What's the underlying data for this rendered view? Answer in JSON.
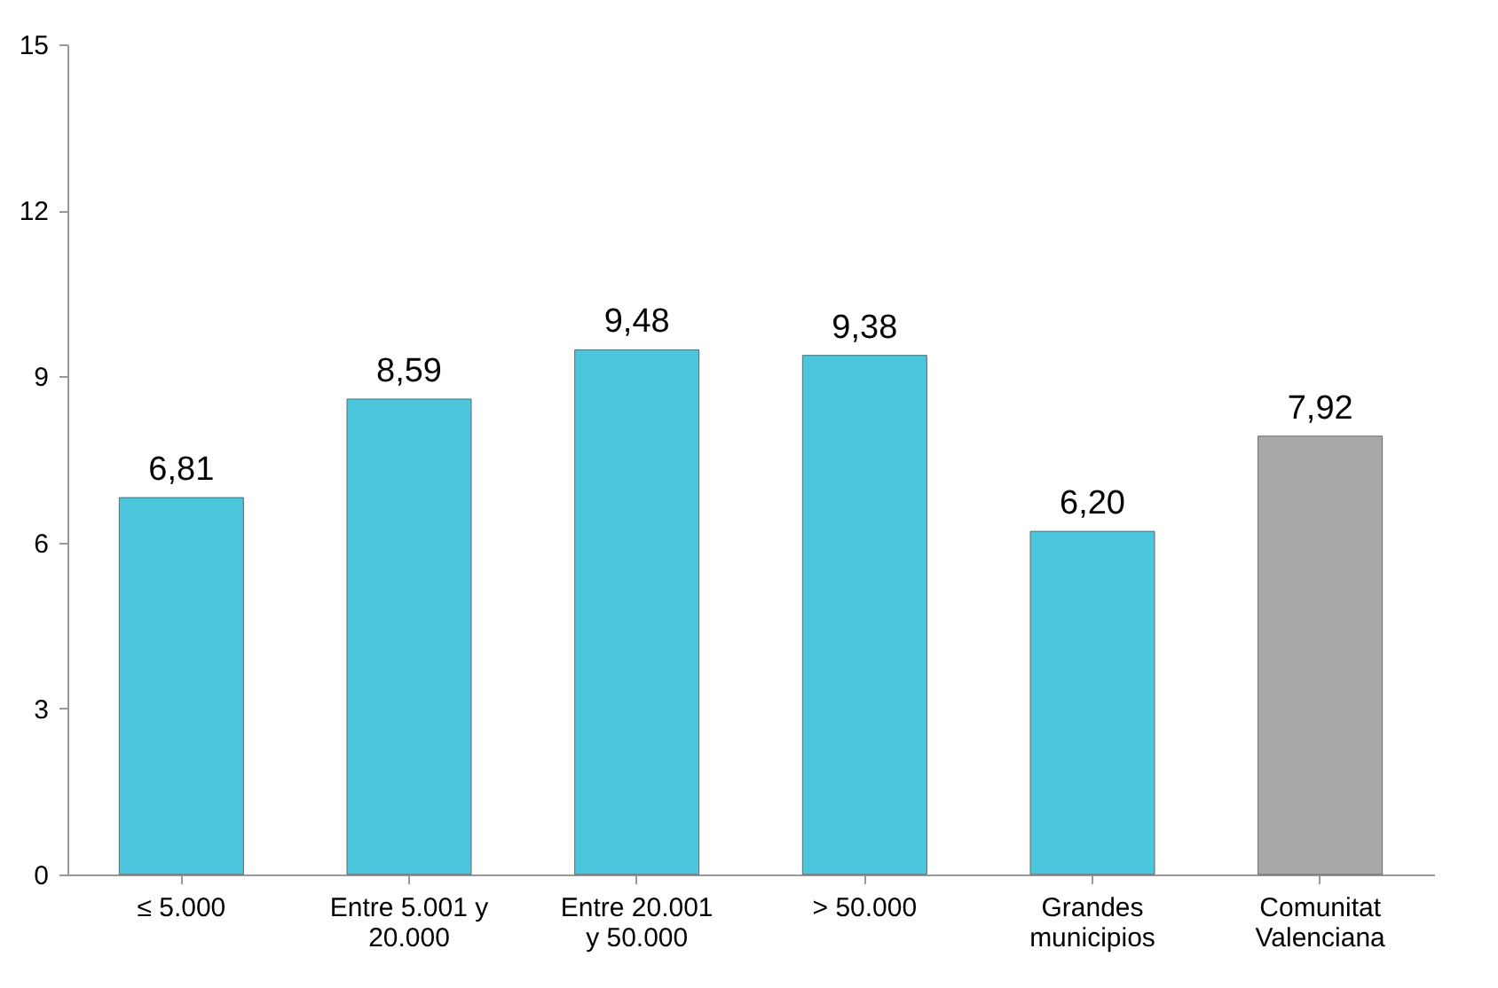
{
  "chart_data": {
    "type": "bar",
    "categories": [
      "≤ 5.000",
      "Entre 5.001 y 20.000",
      "Entre 20.001 y 50.000",
      "> 50.000",
      "Grandes municipios",
      "Comunitat Valenciana"
    ],
    "values": [
      6.81,
      8.59,
      9.48,
      9.38,
      6.2,
      7.92
    ],
    "value_labels": [
      "6,81",
      "8,59",
      "9,48",
      "9,38",
      "6,20",
      "7,92"
    ],
    "colors": [
      "#4bc6dd",
      "#4bc6dd",
      "#4bc6dd",
      "#4bc6dd",
      "#4bc6dd",
      "#a9a9a9"
    ],
    "ylim": [
      0,
      15
    ],
    "yticks": [
      0,
      3,
      6,
      9,
      12,
      15
    ],
    "grid": false
  }
}
